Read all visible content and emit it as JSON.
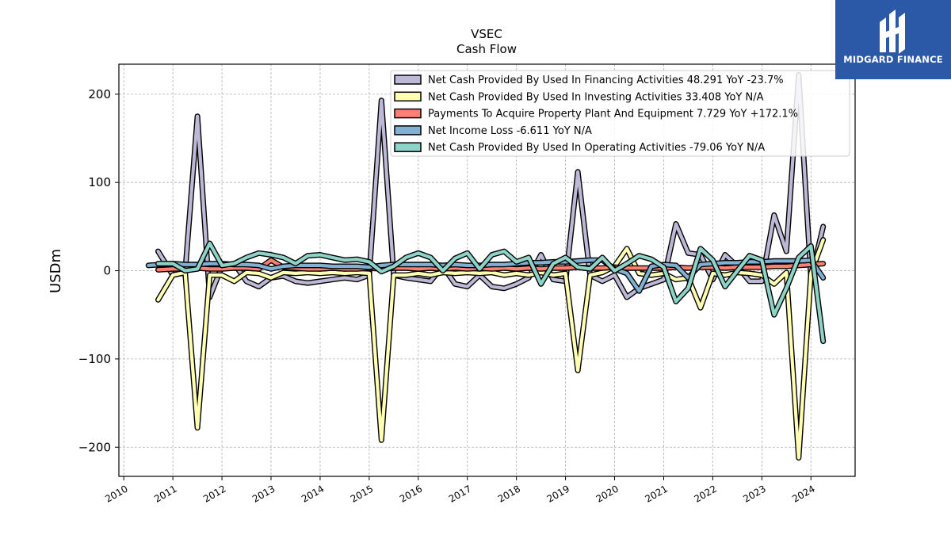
{
  "chart_data": {
    "type": "line",
    "title": "VSEC",
    "subtitle": "Cash Flow",
    "ylabel": "USDm",
    "xlabel": "",
    "xlim": [
      2009.9,
      2024.9
    ],
    "ylim": [
      -233,
      234
    ],
    "yticks": [
      200,
      100,
      0,
      -100,
      -200
    ],
    "ytick_labels": [
      "200",
      "100",
      "0",
      "−100",
      "−200"
    ],
    "xticks": [
      2010,
      2011,
      2012,
      2013,
      2014,
      2015,
      2016,
      2017,
      2018,
      2019,
      2020,
      2021,
      2022,
      2023,
      2024
    ],
    "xtick_labels": [
      "2010",
      "2011",
      "2012",
      "2013",
      "2014",
      "2015",
      "2016",
      "2017",
      "2018",
      "2019",
      "2020",
      "2021",
      "2022",
      "2023",
      "2024"
    ],
    "grid": true,
    "legend_position": "top-right",
    "series": [
      {
        "name": "Net Cash Provided By Used In Financing Activities  48.291 YoY -23.7%",
        "color": "#bcb8d6",
        "points": [
          [
            2010.7,
            22
          ],
          [
            2011.0,
            -5
          ],
          [
            2011.25,
            -2
          ],
          [
            2011.5,
            175
          ],
          [
            2011.75,
            -30
          ],
          [
            2012.0,
            5
          ],
          [
            2012.25,
            8
          ],
          [
            2012.5,
            -12
          ],
          [
            2012.75,
            -18
          ],
          [
            2013.0,
            -8
          ],
          [
            2013.25,
            -6
          ],
          [
            2013.5,
            -12
          ],
          [
            2013.75,
            -14
          ],
          [
            2014.0,
            -12
          ],
          [
            2014.25,
            -10
          ],
          [
            2014.5,
            -8
          ],
          [
            2014.75,
            -10
          ],
          [
            2015.0,
            -5
          ],
          [
            2015.25,
            193
          ],
          [
            2015.5,
            -5
          ],
          [
            2015.75,
            -8
          ],
          [
            2016.0,
            -10
          ],
          [
            2016.25,
            -12
          ],
          [
            2016.5,
            5
          ],
          [
            2016.75,
            -15
          ],
          [
            2017.0,
            -18
          ],
          [
            2017.25,
            -5
          ],
          [
            2017.5,
            -18
          ],
          [
            2017.75,
            -20
          ],
          [
            2018.0,
            -15
          ],
          [
            2018.25,
            -8
          ],
          [
            2018.5,
            18
          ],
          [
            2018.75,
            -10
          ],
          [
            2019.0,
            -12
          ],
          [
            2019.25,
            112
          ],
          [
            2019.5,
            -5
          ],
          [
            2019.75,
            -12
          ],
          [
            2020.0,
            -5
          ],
          [
            2020.25,
            -30
          ],
          [
            2020.5,
            -20
          ],
          [
            2020.75,
            -15
          ],
          [
            2021.0,
            -10
          ],
          [
            2021.25,
            53
          ],
          [
            2021.5,
            20
          ],
          [
            2021.75,
            18
          ],
          [
            2022.0,
            -10
          ],
          [
            2022.25,
            18
          ],
          [
            2022.5,
            5
          ],
          [
            2022.75,
            -12
          ],
          [
            2023.0,
            -12
          ],
          [
            2023.25,
            63
          ],
          [
            2023.5,
            22
          ],
          [
            2023.75,
            222
          ],
          [
            2024.0,
            -8
          ],
          [
            2024.25,
            50
          ]
        ]
      },
      {
        "name": "Net Cash Provided By Used In Investing Activities  33.408 YoY N/A",
        "color": "#ffffb3",
        "points": [
          [
            2010.7,
            -33
          ],
          [
            2011.0,
            -5
          ],
          [
            2011.25,
            -2
          ],
          [
            2011.5,
            -178
          ],
          [
            2011.75,
            -5
          ],
          [
            2012.0,
            -5
          ],
          [
            2012.25,
            -12
          ],
          [
            2012.5,
            -2
          ],
          [
            2012.75,
            -3
          ],
          [
            2013.0,
            -8
          ],
          [
            2013.25,
            -2
          ],
          [
            2013.5,
            -3
          ],
          [
            2013.75,
            -2
          ],
          [
            2014.0,
            -3
          ],
          [
            2014.25,
            -2
          ],
          [
            2014.5,
            -3
          ],
          [
            2014.75,
            -2
          ],
          [
            2015.0,
            -3
          ],
          [
            2015.25,
            -192
          ],
          [
            2015.5,
            -5
          ],
          [
            2015.75,
            -5
          ],
          [
            2016.0,
            -3
          ],
          [
            2016.25,
            -5
          ],
          [
            2016.5,
            -2
          ],
          [
            2016.75,
            -3
          ],
          [
            2017.0,
            -2
          ],
          [
            2017.25,
            -3
          ],
          [
            2017.5,
            -2
          ],
          [
            2017.75,
            -5
          ],
          [
            2018.0,
            -3
          ],
          [
            2018.25,
            -5
          ],
          [
            2018.5,
            -2
          ],
          [
            2018.75,
            -5
          ],
          [
            2019.0,
            -3
          ],
          [
            2019.25,
            -113
          ],
          [
            2019.5,
            -5
          ],
          [
            2019.75,
            -2
          ],
          [
            2020.0,
            5
          ],
          [
            2020.25,
            25
          ],
          [
            2020.5,
            -3
          ],
          [
            2020.75,
            -5
          ],
          [
            2021.0,
            -3
          ],
          [
            2021.25,
            -10
          ],
          [
            2021.5,
            -8
          ],
          [
            2021.75,
            -42
          ],
          [
            2022.0,
            -3
          ],
          [
            2022.25,
            -5
          ],
          [
            2022.5,
            -2
          ],
          [
            2022.75,
            -3
          ],
          [
            2023.0,
            -5
          ],
          [
            2023.25,
            -15
          ],
          [
            2023.5,
            -2
          ],
          [
            2023.75,
            -212
          ],
          [
            2024.0,
            -3
          ],
          [
            2024.25,
            35
          ]
        ]
      },
      {
        "name": "Payments To Acquire Property Plant And Equipment  7.729 YoY +172.1%",
        "color": "#fb8072",
        "points": [
          [
            2010.7,
            1
          ],
          [
            2011.0,
            2
          ],
          [
            2011.25,
            2
          ],
          [
            2011.5,
            3
          ],
          [
            2011.75,
            2
          ],
          [
            2012.0,
            2
          ],
          [
            2012.25,
            3
          ],
          [
            2012.5,
            3
          ],
          [
            2012.75,
            2
          ],
          [
            2013.0,
            12
          ],
          [
            2013.25,
            4
          ],
          [
            2013.5,
            3
          ],
          [
            2013.75,
            2
          ],
          [
            2014.0,
            2
          ],
          [
            2014.25,
            3
          ],
          [
            2014.5,
            2
          ],
          [
            2014.75,
            2
          ],
          [
            2015.0,
            3
          ],
          [
            2015.25,
            2
          ],
          [
            2015.5,
            3
          ],
          [
            2015.75,
            3
          ],
          [
            2016.0,
            2
          ],
          [
            2016.25,
            3
          ],
          [
            2016.5,
            2
          ],
          [
            2016.75,
            3
          ],
          [
            2017.0,
            2
          ],
          [
            2017.25,
            3
          ],
          [
            2017.5,
            2
          ],
          [
            2017.75,
            3
          ],
          [
            2018.0,
            2
          ],
          [
            2018.25,
            3
          ],
          [
            2018.5,
            2
          ],
          [
            2018.75,
            3
          ],
          [
            2019.0,
            3
          ],
          [
            2019.25,
            4
          ],
          [
            2019.5,
            3
          ],
          [
            2019.75,
            3
          ],
          [
            2020.0,
            4
          ],
          [
            2020.25,
            3
          ],
          [
            2020.5,
            3
          ],
          [
            2020.75,
            3
          ],
          [
            2021.0,
            3
          ],
          [
            2021.25,
            4
          ],
          [
            2021.5,
            3
          ],
          [
            2021.75,
            4
          ],
          [
            2022.0,
            4
          ],
          [
            2022.25,
            3
          ],
          [
            2022.5,
            4
          ],
          [
            2022.75,
            4
          ],
          [
            2023.0,
            4
          ],
          [
            2023.25,
            5
          ],
          [
            2023.5,
            5
          ],
          [
            2023.75,
            6
          ],
          [
            2024.0,
            7
          ],
          [
            2024.25,
            8
          ]
        ]
      },
      {
        "name": "Net Income Loss  -6.611 YoY N/A",
        "color": "#80b1d3",
        "points": [
          [
            2010.5,
            6
          ],
          [
            2010.75,
            7
          ],
          [
            2011.0,
            8
          ],
          [
            2011.25,
            7
          ],
          [
            2011.5,
            7
          ],
          [
            2011.75,
            8
          ],
          [
            2012.0,
            8
          ],
          [
            2012.25,
            7
          ],
          [
            2012.5,
            7
          ],
          [
            2012.75,
            6
          ],
          [
            2013.0,
            2
          ],
          [
            2013.25,
            5
          ],
          [
            2013.5,
            6
          ],
          [
            2013.75,
            6
          ],
          [
            2014.0,
            6
          ],
          [
            2014.25,
            5
          ],
          [
            2014.5,
            5
          ],
          [
            2014.75,
            5
          ],
          [
            2015.0,
            4
          ],
          [
            2015.25,
            6
          ],
          [
            2015.5,
            7
          ],
          [
            2015.75,
            7
          ],
          [
            2016.0,
            7
          ],
          [
            2016.25,
            7
          ],
          [
            2016.5,
            6
          ],
          [
            2016.75,
            7
          ],
          [
            2017.0,
            6
          ],
          [
            2017.25,
            6
          ],
          [
            2017.5,
            7
          ],
          [
            2017.75,
            7
          ],
          [
            2018.0,
            8
          ],
          [
            2018.25,
            9
          ],
          [
            2018.5,
            9
          ],
          [
            2018.75,
            10
          ],
          [
            2019.0,
            10
          ],
          [
            2019.25,
            11
          ],
          [
            2019.5,
            12
          ],
          [
            2019.75,
            12
          ],
          [
            2020.0,
            2
          ],
          [
            2020.25,
            -3
          ],
          [
            2020.5,
            -23
          ],
          [
            2020.75,
            5
          ],
          [
            2021.0,
            7
          ],
          [
            2021.25,
            6
          ],
          [
            2021.5,
            -8
          ],
          [
            2021.75,
            7
          ],
          [
            2022.0,
            8
          ],
          [
            2022.25,
            9
          ],
          [
            2022.5,
            9
          ],
          [
            2022.75,
            10
          ],
          [
            2023.0,
            10
          ],
          [
            2023.25,
            11
          ],
          [
            2023.5,
            11
          ],
          [
            2023.75,
            11
          ],
          [
            2024.0,
            12
          ],
          [
            2024.25,
            -8
          ]
        ]
      },
      {
        "name": "Net Cash Provided By Used In Operating Activities  -79.06 YoY N/A",
        "color": "#8dd3c7",
        "points": [
          [
            2010.7,
            8
          ],
          [
            2011.0,
            8
          ],
          [
            2011.25,
            0
          ],
          [
            2011.5,
            2
          ],
          [
            2011.75,
            31
          ],
          [
            2012.0,
            6
          ],
          [
            2012.25,
            8
          ],
          [
            2012.5,
            15
          ],
          [
            2012.75,
            20
          ],
          [
            2013.0,
            18
          ],
          [
            2013.25,
            15
          ],
          [
            2013.5,
            8
          ],
          [
            2013.75,
            17
          ],
          [
            2014.0,
            18
          ],
          [
            2014.25,
            15
          ],
          [
            2014.5,
            12
          ],
          [
            2014.75,
            13
          ],
          [
            2015.0,
            10
          ],
          [
            2015.25,
            -1
          ],
          [
            2015.5,
            5
          ],
          [
            2015.75,
            15
          ],
          [
            2016.0,
            20
          ],
          [
            2016.25,
            15
          ],
          [
            2016.5,
            0
          ],
          [
            2016.75,
            14
          ],
          [
            2017.0,
            20
          ],
          [
            2017.25,
            2
          ],
          [
            2017.5,
            18
          ],
          [
            2017.75,
            22
          ],
          [
            2018.0,
            10
          ],
          [
            2018.25,
            15
          ],
          [
            2018.5,
            -15
          ],
          [
            2018.75,
            8
          ],
          [
            2019.0,
            15
          ],
          [
            2019.25,
            4
          ],
          [
            2019.5,
            2
          ],
          [
            2019.75,
            15
          ],
          [
            2020.0,
            0
          ],
          [
            2020.25,
            8
          ],
          [
            2020.5,
            17
          ],
          [
            2020.75,
            13
          ],
          [
            2021.0,
            4
          ],
          [
            2021.25,
            -35
          ],
          [
            2021.5,
            -20
          ],
          [
            2021.75,
            25
          ],
          [
            2022.0,
            12
          ],
          [
            2022.25,
            -18
          ],
          [
            2022.5,
            0
          ],
          [
            2022.75,
            17
          ],
          [
            2023.0,
            12
          ],
          [
            2023.25,
            -50
          ],
          [
            2023.5,
            -20
          ],
          [
            2023.75,
            15
          ],
          [
            2024.0,
            28
          ],
          [
            2024.25,
            -80
          ]
        ]
      }
    ]
  },
  "logo": {
    "text": "MIDGARD FINANCE"
  }
}
